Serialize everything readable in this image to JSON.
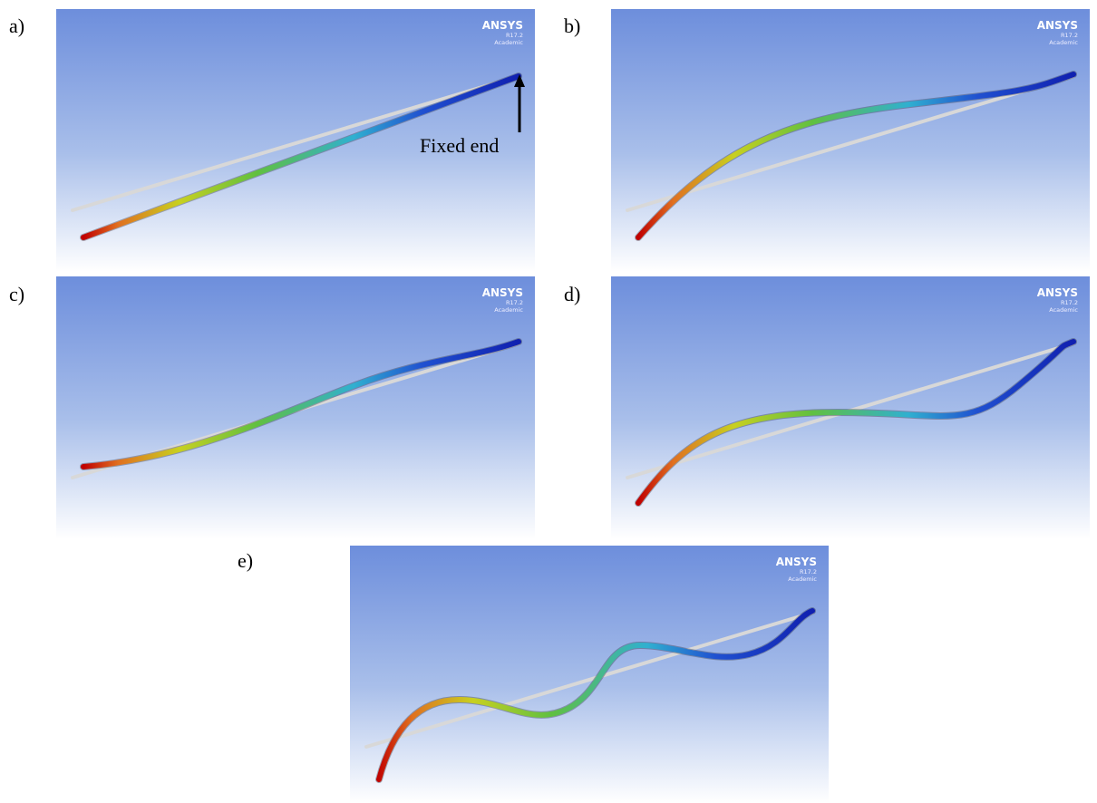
{
  "panels": [
    {
      "label": "a)",
      "logo": {
        "name": "ANSYS",
        "version": "R17.2",
        "edition": "Academic"
      },
      "annotation": "Fixed end"
    },
    {
      "label": "b)",
      "logo": {
        "name": "ANSYS",
        "version": "R17.2",
        "edition": "Academic"
      }
    },
    {
      "label": "c)",
      "logo": {
        "name": "ANSYS",
        "version": "R17.2",
        "edition": "Academic"
      }
    },
    {
      "label": "d)",
      "logo": {
        "name": "ANSYS",
        "version": "R17.2",
        "edition": "Academic"
      }
    },
    {
      "label": "e)",
      "logo": {
        "name": "ANSYS",
        "version": "R17.2",
        "edition": "Academic"
      }
    }
  ]
}
